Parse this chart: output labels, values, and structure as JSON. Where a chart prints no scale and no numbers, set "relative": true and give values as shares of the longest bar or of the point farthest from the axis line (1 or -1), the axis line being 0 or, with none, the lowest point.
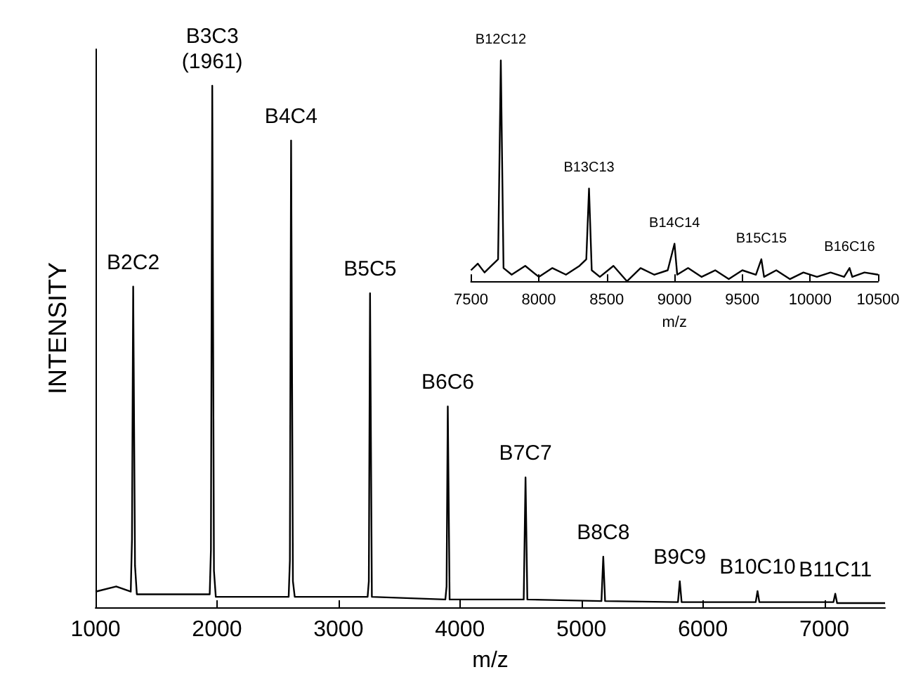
{
  "chart_data": [
    {
      "type": "line",
      "relative": true,
      "xlabel": "m/z",
      "ylabel": "INTENSITY",
      "xlim": [
        1000,
        7500
      ],
      "xticks": [
        1000,
        2000,
        3000,
        4000,
        5000,
        6000,
        7000
      ],
      "grid": false,
      "marker": "none",
      "line_style": "solid",
      "series": [
        {
          "color": "#000000",
          "x": [
            1000,
            1170,
            1290,
            1300,
            1310,
            1325,
            1340,
            1940,
            1950,
            1961,
            1975,
            1990,
            2590,
            2600,
            2610,
            2625,
            2640,
            3240,
            3250,
            3260,
            3275,
            3880,
            3890,
            3900,
            3915,
            4525,
            4540,
            4555,
            5165,
            5180,
            5195,
            5795,
            5810,
            5825,
            6435,
            6450,
            6465,
            7075,
            7090,
            7105,
            7500
          ],
          "values": [
            0.03,
            0.04,
            0.03,
            0.13,
            0.615,
            0.08,
            0.025,
            0.025,
            0.11,
            1,
            0.07,
            0.02,
            0.02,
            0.09,
            0.895,
            0.05,
            0.02,
            0.02,
            0.05,
            0.602,
            0.02,
            0.015,
            0.04,
            0.385,
            0.015,
            0.015,
            0.249,
            0.015,
            0.012,
            0.097,
            0.012,
            0.01,
            0.05,
            0.01,
            0.01,
            0.031,
            0.01,
            0.01,
            0.026,
            0.008,
            0.008
          ]
        }
      ],
      "annotations": [
        {
          "text": "B2C2",
          "x": 1310,
          "y": 0.615
        },
        {
          "text": "B3C3\n(1961)",
          "x": 1961,
          "y": 1
        },
        {
          "text": "B4C4",
          "x": 2610,
          "y": 0.895
        },
        {
          "text": "B5C5",
          "x": 3260,
          "y": 0.602
        },
        {
          "text": "B6C6",
          "x": 3900,
          "y": 0.385
        },
        {
          "text": "B7C7",
          "x": 4540,
          "y": 0.249
        },
        {
          "text": "B8C8",
          "x": 5180,
          "y": 0.097
        },
        {
          "text": "B9C9",
          "x": 5810,
          "y": 0.05
        },
        {
          "text": "B10C10",
          "x": 6450,
          "y": 0.031
        },
        {
          "text": "B11C11",
          "x": 7090,
          "y": 0.026
        }
      ]
    },
    {
      "type": "line",
      "relative": true,
      "xlabel": "m/z",
      "xlim": [
        7500,
        10500
      ],
      "xticks": [
        7500,
        8000,
        8500,
        9000,
        9500,
        10000,
        10500
      ],
      "grid": false,
      "marker": "none",
      "line_style": "solid",
      "series": [
        {
          "color": "#000000",
          "x": [
            7500,
            7550,
            7600,
            7650,
            7700,
            7720,
            7740,
            7800,
            7900,
            8000,
            8100,
            8200,
            8300,
            8350,
            8370,
            8390,
            8450,
            8550,
            8650,
            8750,
            8850,
            8950,
            9000,
            9020,
            9100,
            9200,
            9300,
            9400,
            9500,
            9600,
            9640,
            9660,
            9750,
            9850,
            9950,
            10050,
            10150,
            10250,
            10290,
            10310,
            10400,
            10500
          ],
          "values": [
            0.05,
            0.08,
            0.04,
            0.07,
            0.1,
            1,
            0.06,
            0.03,
            0.07,
            0.02,
            0.06,
            0.03,
            0.07,
            0.1,
            0.42,
            0.05,
            0.02,
            0.07,
            0,
            0.06,
            0.03,
            0.05,
            0.17,
            0.03,
            0.06,
            0.02,
            0.05,
            0.01,
            0.05,
            0.03,
            0.1,
            0.02,
            0.05,
            0.01,
            0.04,
            0.02,
            0.04,
            0.02,
            0.06,
            0.02,
            0.04,
            0.03
          ]
        }
      ],
      "annotations": [
        {
          "text": "B12C12",
          "x": 7720,
          "y": 1
        },
        {
          "text": "B13C13",
          "x": 8370,
          "y": 0.42
        },
        {
          "text": "B14C14",
          "x": 9000,
          "y": 0.17
        },
        {
          "text": "B15C15",
          "x": 9640,
          "y": 0.1
        },
        {
          "text": "B16C16",
          "x": 10290,
          "y": 0.06
        }
      ]
    }
  ]
}
